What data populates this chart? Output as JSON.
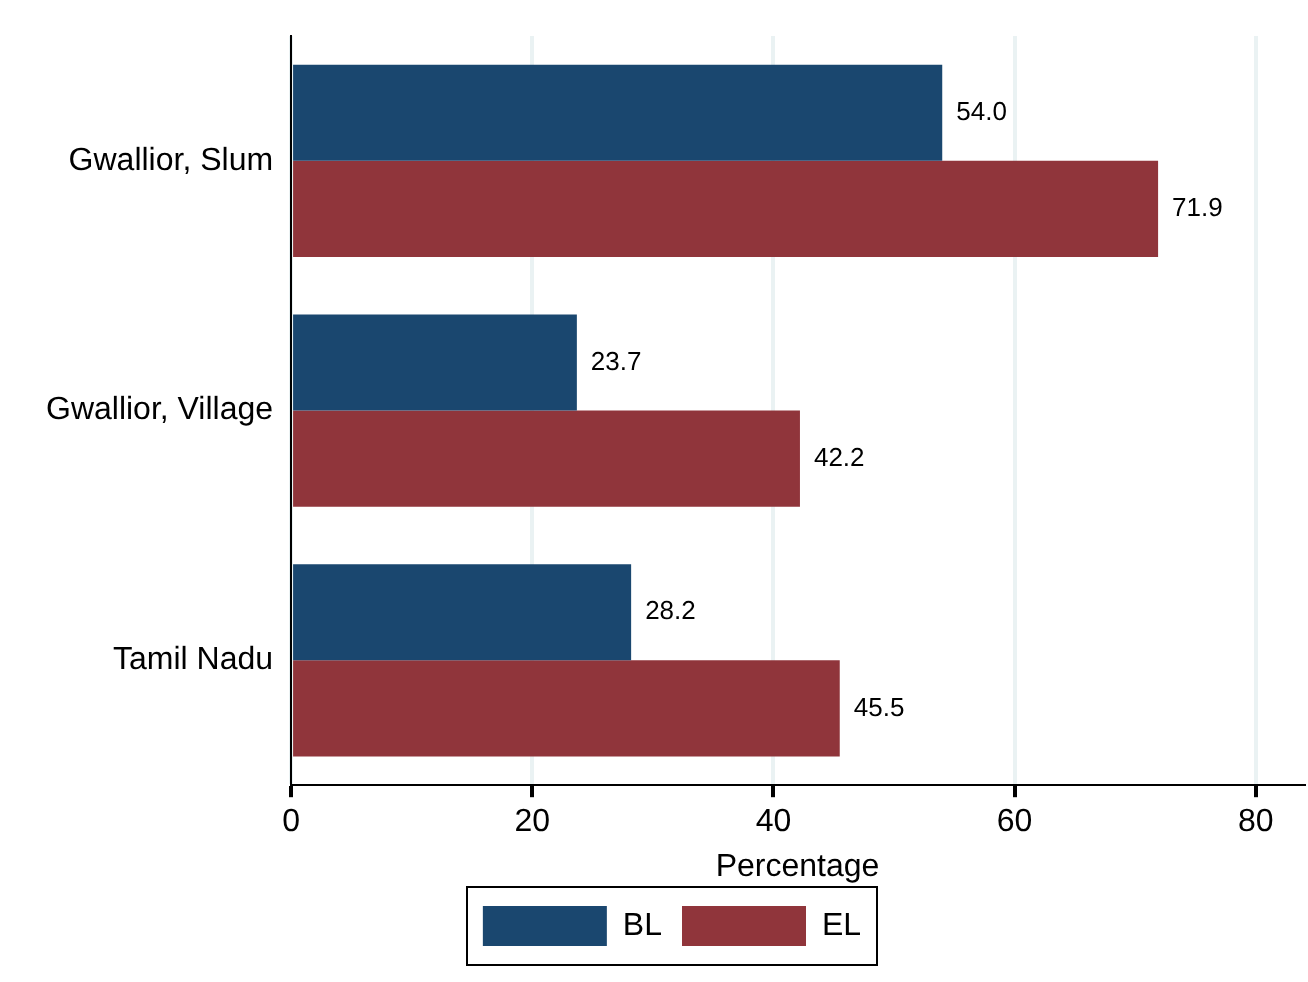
{
  "chart_data": {
    "type": "bar",
    "orientation": "horizontal",
    "categories": [
      "Gwallior, Slum",
      "Gwallior, Village",
      "Tamil Nadu"
    ],
    "series": [
      {
        "name": "BL",
        "color": "#1a476f",
        "values": [
          54.0,
          23.7,
          28.2
        ],
        "value_labels": [
          "54.0",
          "23.7",
          "28.2"
        ]
      },
      {
        "name": "EL",
        "color": "#90353b",
        "values": [
          71.9,
          42.2,
          45.5
        ],
        "value_labels": [
          "71.9",
          "42.2",
          "45.5"
        ]
      }
    ],
    "xlabel": "Percentage",
    "xlim": [
      0,
      84
    ],
    "xticks": [
      0,
      20,
      40,
      60,
      80
    ],
    "grid": "x",
    "legend": "bottom"
  }
}
